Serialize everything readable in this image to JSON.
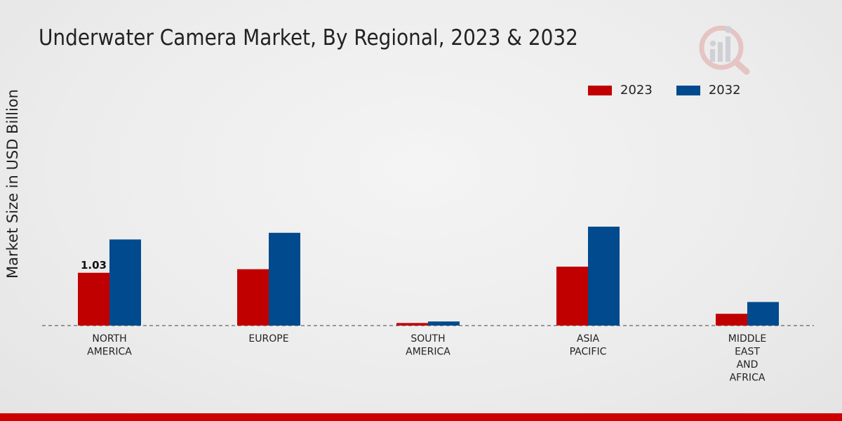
{
  "title": "Underwater Camera Market, By Regional, 2023 & 2032",
  "colors": {
    "series_2023": "#c00000",
    "series_2032": "#004a8d",
    "footer": "#cc0000"
  },
  "chart_data": {
    "type": "bar",
    "title": "Underwater Camera Market, By Regional, 2023 & 2032",
    "xlabel": "",
    "ylabel": "Market Size in USD Billion",
    "ylim": [
      0,
      4.6
    ],
    "grid": false,
    "legend_position": "top-right",
    "categories": [
      "NORTH\nAMERICA",
      "EUROPE",
      "SOUTH\nAMERICA",
      "ASIA\nPACIFIC",
      "MIDDLE\nEAST\nAND\nAFRICA"
    ],
    "series": [
      {
        "name": "2023",
        "color": "#c00000",
        "values": [
          1.03,
          1.1,
          0.05,
          1.15,
          0.23
        ]
      },
      {
        "name": "2032",
        "color": "#004a8d",
        "values": [
          1.68,
          1.81,
          0.08,
          1.93,
          0.46
        ]
      }
    ],
    "annotations": [
      {
        "series": "2023",
        "category_index": 0,
        "text": "1.03"
      }
    ]
  },
  "legend": {
    "items": [
      {
        "label": "2023"
      },
      {
        "label": "2032"
      }
    ]
  },
  "icons": {
    "logo": "market-research-logo-icon"
  }
}
